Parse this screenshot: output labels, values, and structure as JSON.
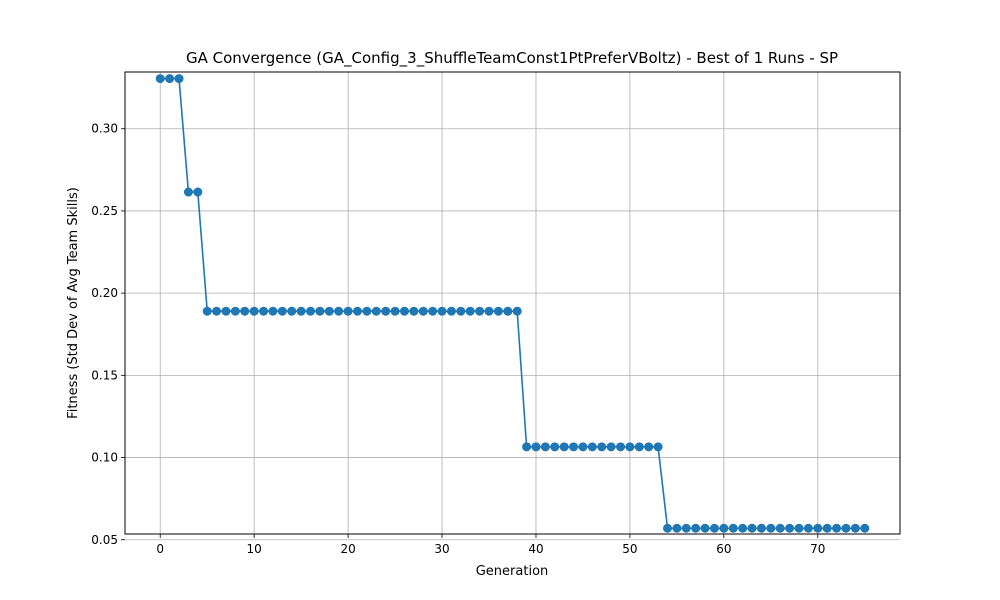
{
  "chart_data": {
    "type": "line",
    "title": "GA Convergence (GA_Config_3_ShuffleTeamConst1PtPreferVBoltz) - Best of 1 Runs - SP",
    "xlabel": "Generation",
    "ylabel": "Fitness (Std Dev of Avg Team Skills)",
    "xlim": [
      -3.75,
      78.75
    ],
    "ylim": [
      0.0535,
      0.3345
    ],
    "xticks": [
      0,
      10,
      20,
      30,
      40,
      50,
      60,
      70
    ],
    "xtick_labels": [
      "0",
      "10",
      "20",
      "30",
      "40",
      "50",
      "60",
      "70"
    ],
    "yticks": [
      0.05,
      0.1,
      0.15,
      0.2,
      0.25,
      0.3
    ],
    "ytick_labels": [
      "0.05",
      "0.10",
      "0.15",
      "0.20",
      "0.25",
      "0.30"
    ],
    "grid": true,
    "marker": "circle",
    "color": "#1f77b4",
    "x": [
      0,
      1,
      2,
      3,
      4,
      5,
      6,
      7,
      8,
      9,
      10,
      11,
      12,
      13,
      14,
      15,
      16,
      17,
      18,
      19,
      20,
      21,
      22,
      23,
      24,
      25,
      26,
      27,
      28,
      29,
      30,
      31,
      32,
      33,
      34,
      35,
      36,
      37,
      38,
      39,
      40,
      41,
      42,
      43,
      44,
      45,
      46,
      47,
      48,
      49,
      50,
      51,
      52,
      53,
      54,
      55,
      56,
      57,
      58,
      59,
      60,
      61,
      62,
      63,
      64,
      65,
      66,
      67,
      68,
      69,
      70,
      71,
      72,
      73,
      74,
      75
    ],
    "y": [
      0.3305,
      0.3305,
      0.3305,
      0.2615,
      0.2615,
      0.189,
      0.189,
      0.189,
      0.189,
      0.189,
      0.189,
      0.189,
      0.189,
      0.189,
      0.189,
      0.189,
      0.189,
      0.189,
      0.189,
      0.189,
      0.189,
      0.189,
      0.189,
      0.189,
      0.189,
      0.189,
      0.189,
      0.189,
      0.189,
      0.189,
      0.189,
      0.189,
      0.189,
      0.189,
      0.189,
      0.189,
      0.189,
      0.189,
      0.189,
      0.1065,
      0.1065,
      0.1065,
      0.1065,
      0.1065,
      0.1065,
      0.1065,
      0.1065,
      0.1065,
      0.1065,
      0.1065,
      0.1065,
      0.1065,
      0.1065,
      0.1065,
      0.057,
      0.057,
      0.057,
      0.057,
      0.057,
      0.057,
      0.057,
      0.057,
      0.057,
      0.057,
      0.057,
      0.057,
      0.057,
      0.057,
      0.057,
      0.057,
      0.057,
      0.057,
      0.057,
      0.057,
      0.057,
      0.057
    ]
  }
}
